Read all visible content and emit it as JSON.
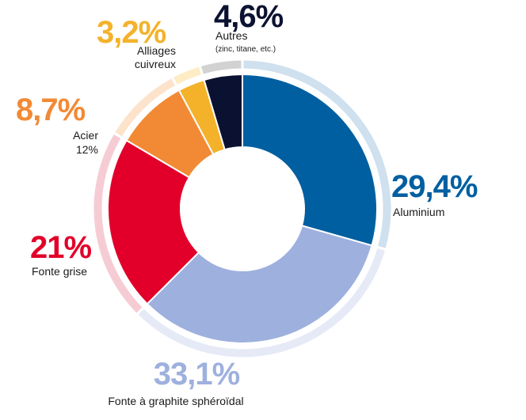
{
  "chart_data": {
    "type": "pie",
    "title": "",
    "slices": [
      {
        "label": "Aluminium",
        "value": 29.4,
        "display": "29,4%",
        "color": "#005fa0",
        "halo": "#cfe0ee",
        "note": ""
      },
      {
        "label": "Fonte à graphite sphéroïdal",
        "value": 33.1,
        "display": "33,1%",
        "color": "#9eb0de",
        "halo": "#e5eaf6",
        "note": ""
      },
      {
        "label": "Fonte grise",
        "value": 21,
        "display": "21%",
        "color": "#e2002a",
        "halo": "#f6ccd4",
        "note": ""
      },
      {
        "label": "Acier",
        "value": 8.7,
        "display": "8,7%",
        "color": "#f28a35",
        "halo": "#fde3cc",
        "note": "12%"
      },
      {
        "label": "Alliages cuivreux",
        "value": 3.2,
        "display": "3,2%",
        "color": "#f4b22b",
        "halo": "#fdecc4",
        "note": ""
      },
      {
        "label": "Autres",
        "value": 4.6,
        "display": "4,6%",
        "color": "#0b1231",
        "halo": "#d2d2d2",
        "note": "(zinc, titane, etc.)"
      }
    ]
  }
}
